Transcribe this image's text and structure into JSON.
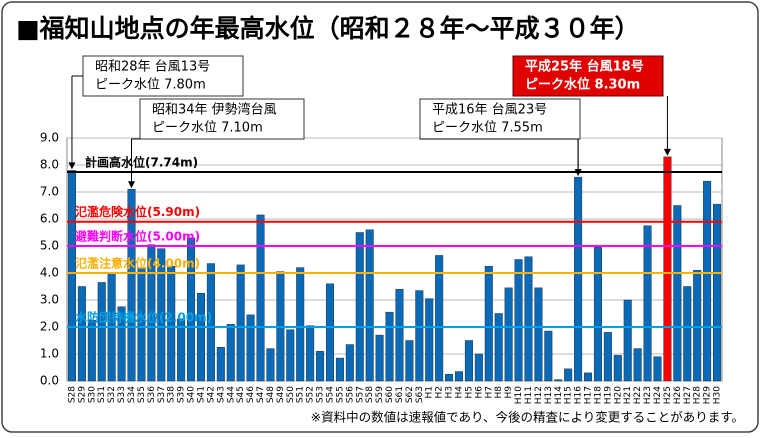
{
  "chart_data": {
    "type": "bar",
    "title": "■福知山地点の年最高水位（昭和２８年～平成３０年）",
    "categories": [
      "S28",
      "S29",
      "S30",
      "S31",
      "S32",
      "S33",
      "S34",
      "S35",
      "S36",
      "S37",
      "S38",
      "S39",
      "S40",
      "S41",
      "S42",
      "S43",
      "S44",
      "S45",
      "S46",
      "S47",
      "S48",
      "S49",
      "S50",
      "S51",
      "S52",
      "S53",
      "S54",
      "S55",
      "S56",
      "S57",
      "S58",
      "S59",
      "S60",
      "S61",
      "S62",
      "S63",
      "H1",
      "H2",
      "H3",
      "H4",
      "H5",
      "H6",
      "H7",
      "H8",
      "H9",
      "H10",
      "H11",
      "H12",
      "H13",
      "H14",
      "H15",
      "H16",
      "H17",
      "H18",
      "H19",
      "H20",
      "H21",
      "H22",
      "H23",
      "H24",
      "H25",
      "H26",
      "H27",
      "H28",
      "H29",
      "H30"
    ],
    "values": [
      7.8,
      3.5,
      2.25,
      3.65,
      4.0,
      2.75,
      7.1,
      4.2,
      5.05,
      4.9,
      4.25,
      2.3,
      5.3,
      3.25,
      4.35,
      1.25,
      2.1,
      4.3,
      2.45,
      6.15,
      1.2,
      4.05,
      1.9,
      4.2,
      2.05,
      1.1,
      3.6,
      0.85,
      1.35,
      5.5,
      5.6,
      1.7,
      2.55,
      3.4,
      1.5,
      3.35,
      3.05,
      4.65,
      0.25,
      0.35,
      1.5,
      1.0,
      4.25,
      2.5,
      3.45,
      4.5,
      4.6,
      3.45,
      1.85,
      0.05,
      0.45,
      7.55,
      0.3,
      4.95,
      1.8,
      0.95,
      3.0,
      1.2,
      5.75,
      0.9,
      8.3,
      6.5,
      3.5,
      4.1,
      7.4,
      6.55
    ],
    "colors": [
      "#0b6ab8",
      "#0b6ab8",
      "#0b6ab8",
      "#0b6ab8",
      "#0b6ab8",
      "#0b6ab8",
      "#0b6ab8",
      "#0b6ab8",
      "#0b6ab8",
      "#0b6ab8",
      "#0b6ab8",
      "#0b6ab8",
      "#0b6ab8",
      "#0b6ab8",
      "#0b6ab8",
      "#0b6ab8",
      "#0b6ab8",
      "#0b6ab8",
      "#0b6ab8",
      "#0b6ab8",
      "#0b6ab8",
      "#0b6ab8",
      "#0b6ab8",
      "#0b6ab8",
      "#0b6ab8",
      "#0b6ab8",
      "#0b6ab8",
      "#0b6ab8",
      "#0b6ab8",
      "#0b6ab8",
      "#0b6ab8",
      "#0b6ab8",
      "#0b6ab8",
      "#0b6ab8",
      "#0b6ab8",
      "#0b6ab8",
      "#0b6ab8",
      "#0b6ab8",
      "#0b6ab8",
      "#0b6ab8",
      "#0b6ab8",
      "#0b6ab8",
      "#0b6ab8",
      "#0b6ab8",
      "#0b6ab8",
      "#0b6ab8",
      "#0b6ab8",
      "#0b6ab8",
      "#0b6ab8",
      "#0b6ab8",
      "#0b6ab8",
      "#0b6ab8",
      "#0b6ab8",
      "#0b6ab8",
      "#0b6ab8",
      "#0b6ab8",
      "#0b6ab8",
      "#0b6ab8",
      "#0b6ab8",
      "#0b6ab8",
      "#ff0000",
      "#0b6ab8",
      "#0b6ab8",
      "#0b6ab8",
      "#0b6ab8",
      "#0b6ab8"
    ],
    "ylim": [
      0,
      9
    ],
    "yticks": [
      {
        "value": 0,
        "label": "0.0"
      },
      {
        "value": 1,
        "label": "1.0"
      },
      {
        "value": 2,
        "label": "2.0"
      },
      {
        "value": 3,
        "label": "3.0"
      },
      {
        "value": 4,
        "label": "4.0"
      },
      {
        "value": 5,
        "label": "5.0"
      },
      {
        "value": 6,
        "label": "6.0"
      },
      {
        "value": 7,
        "label": "7.0"
      },
      {
        "value": 8,
        "label": "8.0"
      },
      {
        "value": 9,
        "label": "9.0"
      }
    ],
    "grid": true,
    "reference_lines": [
      {
        "label": "計画高水位(7.74m)",
        "value": 7.74,
        "color": "#000000"
      },
      {
        "label": "氾濫危険水位(5.90m)",
        "value": 5.9,
        "color": "#ff0000"
      },
      {
        "label": "避難判断水位(5.00m)",
        "value": 5.0,
        "color": "#ff00ff"
      },
      {
        "label": "氾濫注意水位(4.00m)",
        "value": 4.0,
        "color": "#ffb000"
      },
      {
        "label": "水防団待機水位(2.00m)",
        "value": 2.0,
        "color": "#00a0e8"
      }
    ],
    "annotations": [
      {
        "lines": [
          "昭和28年 台風13号",
          "ピーク水位  7.80m"
        ]
      },
      {
        "lines": [
          "昭和34年 伊勢湾台風",
          "ピーク水位  7.10m"
        ]
      },
      {
        "lines": [
          "平成16年 台風23号",
          "ピーク水位  7.55m"
        ]
      },
      {
        "lines": [
          "平成25年 台風18号",
          "ピーク水位  8.30m"
        ]
      }
    ],
    "footnote": "※資料中の数値は速報値であり、今後の精査により変更することがあります。"
  }
}
